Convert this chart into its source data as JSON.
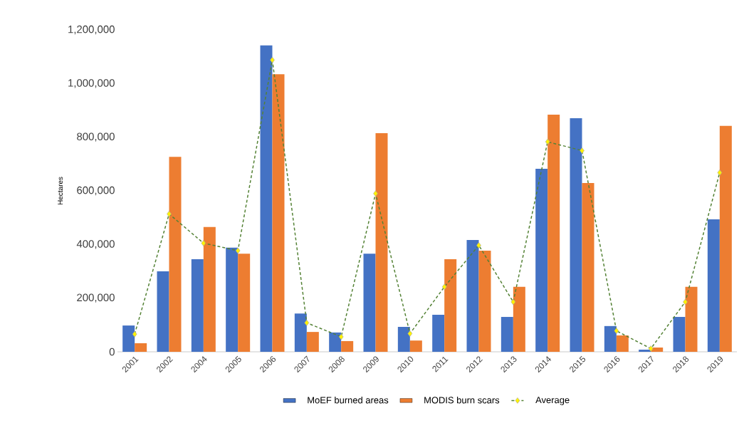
{
  "chart_data": {
    "type": "bar",
    "ylabel": "Hectares",
    "categories": [
      "2001",
      "2002",
      "2004",
      "2005",
      "2006",
      "2007",
      "2008",
      "2009",
      "2010",
      "2011",
      "2012",
      "2013",
      "2014",
      "2015",
      "2016",
      "2017",
      "2018",
      "2019"
    ],
    "series": [
      {
        "name": "MoEF burned areas",
        "color": "#4472c4",
        "values": [
          98000,
          300000,
          345000,
          388000,
          1142000,
          143000,
          72000,
          366000,
          93000,
          138000,
          417000,
          130000,
          682000,
          871000,
          96000,
          8000,
          130000,
          494000
        ]
      },
      {
        "name": "MODIS burn scars",
        "color": "#ed7d31",
        "values": [
          32000,
          727000,
          465000,
          366000,
          1035000,
          74000,
          40000,
          815000,
          42000,
          345000,
          377000,
          242000,
          884000,
          629000,
          61000,
          16000,
          242000,
          842000
        ]
      },
      {
        "name": "Average",
        "type": "line",
        "color": "#548235",
        "marker": "diamond",
        "line_style": "dashed",
        "values": [
          66000,
          514000,
          405000,
          377000,
          1088000,
          108000,
          56000,
          590000,
          68000,
          242000,
          397000,
          186000,
          783000,
          750000,
          78000,
          12000,
          186000,
          668000
        ]
      }
    ],
    "ylim": [
      0,
      1200000
    ],
    "yticks": [
      {
        "value": 0,
        "label": "0"
      },
      {
        "value": 200000,
        "label": "200,000"
      },
      {
        "value": 400000,
        "label": "400,000"
      },
      {
        "value": 600000,
        "label": "600,000"
      },
      {
        "value": 800000,
        "label": "800,000"
      },
      {
        "value": 1000000,
        "label": "1,000,000"
      },
      {
        "value": 1200000,
        "label": "1,200,000"
      }
    ],
    "grid": false,
    "legend": "bottom"
  }
}
